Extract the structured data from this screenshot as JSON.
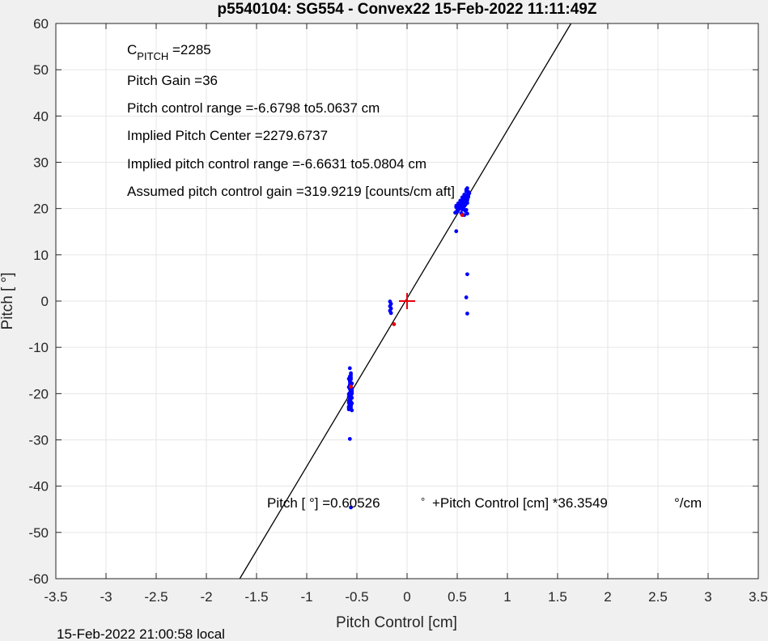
{
  "chart_data": {
    "type": "scatter",
    "title": "p5540104: SG554 - Convex22 15-Feb-2022 11:11:49Z",
    "xlabel": "Pitch Control [cm]",
    "ylabel": "Pitch [ °]",
    "xlim": [
      -3.5,
      3.5
    ],
    "ylim": [
      -60,
      60
    ],
    "xticks": [
      -3.5,
      -3,
      -2.5,
      -2,
      -1.5,
      -1,
      -0.5,
      0,
      0.5,
      1,
      1.5,
      2,
      2.5,
      3,
      3.5
    ],
    "yticks": [
      -60,
      -50,
      -40,
      -30,
      -20,
      -10,
      0,
      10,
      20,
      30,
      40,
      50,
      60
    ],
    "xtick_labels": [
      "-3.5",
      "-3",
      "-2.5",
      "-2",
      "-1.5",
      "-1",
      "-0.5",
      "0",
      "0.5",
      "1",
      "1.5",
      "2",
      "2.5",
      "3",
      "3.5"
    ],
    "ytick_labels": [
      "-60",
      "-50",
      "-40",
      "-30",
      "-20",
      "-10",
      "0",
      "10",
      "20",
      "30",
      "40",
      "50",
      "60"
    ],
    "grid": true,
    "fit_line": {
      "intercept": 0.60526,
      "slope": 36.3549
    },
    "center_marker": {
      "x": 0,
      "y": 0,
      "color": "#e8000b"
    },
    "series": [
      {
        "color": "#0000ff",
        "x": [
          -0.57,
          -0.56,
          -0.58,
          -0.57,
          -0.55,
          -0.56,
          -0.58,
          -0.57,
          -0.56,
          -0.55,
          -0.57,
          -0.58,
          -0.56,
          -0.57,
          -0.55,
          -0.56,
          -0.57,
          -0.58,
          -0.56,
          -0.55,
          -0.57,
          -0.56,
          -0.58,
          -0.57,
          -0.56,
          -0.55,
          -0.57,
          -0.56,
          -0.58,
          -0.57,
          -0.56,
          -0.57,
          -0.56,
          -0.55,
          -0.57,
          -0.56,
          -0.58,
          -0.57,
          -0.56,
          -0.57,
          -0.56,
          -0.55,
          -0.58,
          -0.57,
          -0.56,
          -0.55,
          -0.57,
          -0.56,
          -0.58,
          -0.57,
          -0.56,
          -0.57,
          -0.56,
          -0.56,
          -0.17,
          -0.16,
          -0.17,
          -0.16,
          -0.17,
          -0.16,
          0.48,
          0.5,
          0.52,
          0.49,
          0.51,
          0.53,
          0.55,
          0.54,
          0.56,
          0.57,
          0.58,
          0.59,
          0.6,
          0.61,
          0.62,
          0.55,
          0.57,
          0.58,
          0.6,
          0.61,
          0.59,
          0.56,
          0.54,
          0.52,
          0.5,
          0.49,
          0.51,
          0.53,
          0.55,
          0.57,
          0.59,
          0.6,
          0.61,
          0.58,
          0.56,
          0.54,
          0.52,
          0.6,
          0.59,
          0.57,
          0.49,
          0.58,
          0.59,
          0.6,
          0.59,
          0.56,
          0.61,
          0.58,
          0.53
        ],
        "y": [
          -14.5,
          -16.0,
          -16.8,
          -17.4,
          -17.8,
          -18.2,
          -18.6,
          -19.0,
          -19.3,
          -19.6,
          -19.9,
          -20.1,
          -20.4,
          -20.6,
          -20.9,
          -21.1,
          -21.3,
          -21.6,
          -21.8,
          -22.1,
          -22.3,
          -22.6,
          -22.8,
          -23.1,
          -23.3,
          -23.6,
          -18.4,
          -19.5,
          -20.7,
          -21.5,
          -22.9,
          -17.1,
          -16.5,
          -18.9,
          -20.2,
          -21.9,
          -23.0,
          -19.8,
          -17.7,
          -16.3,
          -15.6,
          -20.0,
          -22.0,
          -18.0,
          -21.0,
          -19.2,
          -20.8,
          -22.4,
          -23.4,
          -17.0,
          -16.9,
          -29.8,
          -44.6,
          -19.4,
          -0.1,
          -0.6,
          -1.1,
          -1.6,
          -2.1,
          -2.6,
          19.1,
          19.6,
          20.1,
          20.6,
          21.1,
          21.3,
          20.9,
          20.2,
          21.6,
          22.1,
          22.6,
          22.3,
          21.8,
          22.9,
          23.3,
          19.8,
          20.5,
          21.4,
          22.0,
          23.6,
          24.1,
          21.9,
          20.7,
          19.9,
          19.3,
          20.3,
          21.0,
          21.7,
          22.4,
          23.0,
          22.8,
          21.2,
          22.5,
          19.5,
          20.0,
          19.0,
          20.4,
          24.4,
          23.7,
          18.6,
          15.1,
          20.8,
          19.7,
          18.9,
          22.0,
          21.5,
          23.2,
          21.0,
          20.6
        ],
        "extra_x": [
          0.6,
          0.59,
          0.6
        ],
        "extra_y": [
          5.8,
          0.8,
          -2.7
        ]
      },
      {
        "color": "#e8000b",
        "x": [
          -0.13,
          0.55,
          -0.56
        ],
        "y": [
          -5.0,
          18.6,
          -18.5
        ]
      }
    ],
    "annotations": [
      {
        "id": "cpitch_sym",
        "text": "C",
        "pos": "top-left"
      },
      {
        "id": "cpitch_sub",
        "text": "PITCH"
      },
      {
        "id": "cpitch_val",
        "text": " =2285"
      },
      {
        "id": "gain",
        "text": "Pitch Gain =36"
      },
      {
        "id": "range",
        "text": "Pitch control range =-6.6798 to5.0637 cm"
      },
      {
        "id": "center",
        "text": "Implied Pitch Center =2279.6737"
      },
      {
        "id": "implied_range",
        "text": "Implied pitch control range =-6.6631 to5.0804 cm"
      },
      {
        "id": "assumed_gain",
        "text": "Assumed pitch control gain =319.9219 [counts/cm aft]"
      }
    ],
    "equation": {
      "lhs": "Pitch [  °] =0.60526",
      "deg": "°",
      "mid": "+Pitch Control [cm] *36.3549",
      "unit": "°/cm"
    },
    "footer": "15-Feb-2022 21:00:58 local"
  }
}
